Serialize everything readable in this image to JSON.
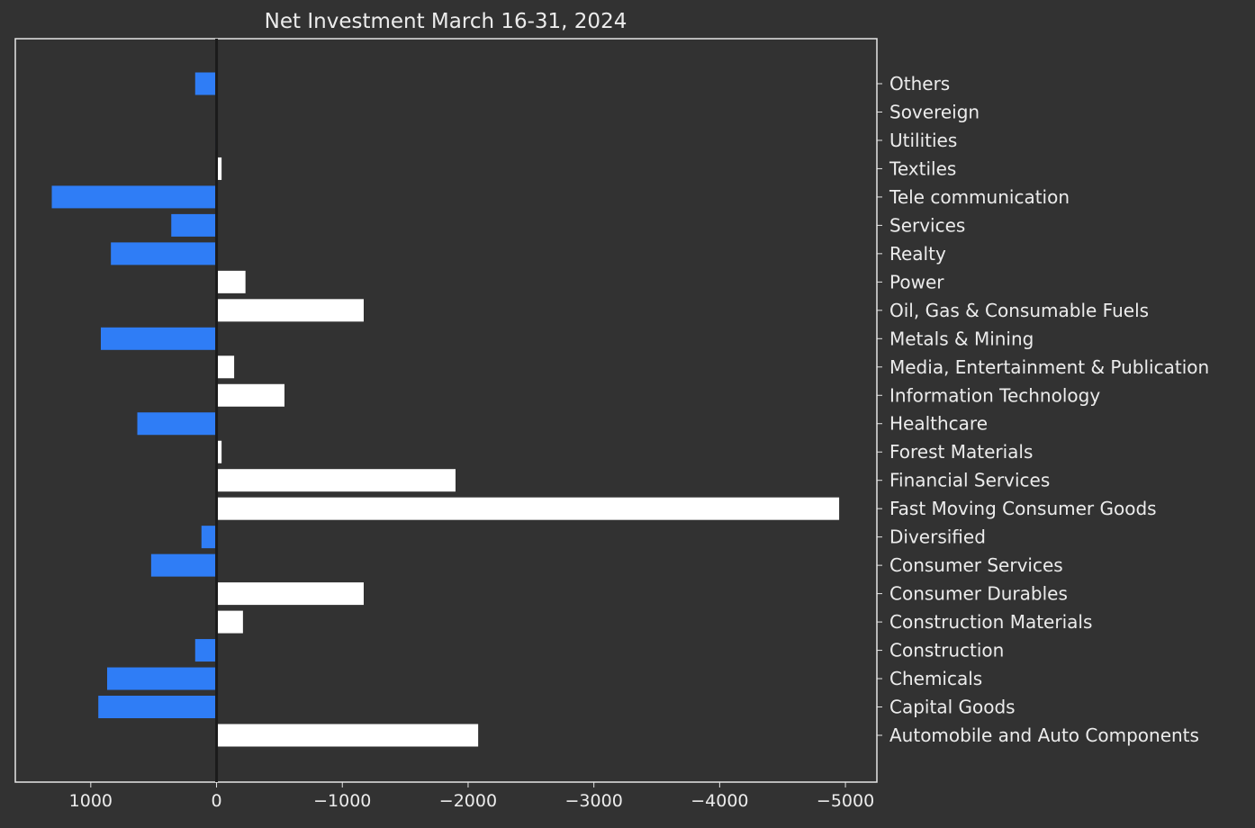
{
  "chart_data": {
    "type": "bar",
    "orientation": "horizontal",
    "title": "Net Investment March 16-31, 2024",
    "xlabel": "",
    "ylabel": "",
    "x_axis_inverted": true,
    "xlim": [
      1600,
      -5250
    ],
    "xticks": [
      1000,
      0,
      -1000,
      -2000,
      -3000,
      -4000,
      -5000
    ],
    "xtick_labels": [
      "1000",
      "0",
      "−1000",
      "−2000",
      "−3000",
      "−4000",
      "−5000"
    ],
    "ytick_position": "right",
    "grid": false,
    "colors": {
      "background": "#323232",
      "axes": "#e6e6e6",
      "positive_bar": "#2f7df6",
      "negative_bar": "#ffffff",
      "zero_line": "#1b1b1b"
    },
    "categories": [
      "Automobile and Auto Components",
      "Capital Goods",
      "Chemicals",
      "Construction",
      "Construction Materials",
      "Consumer Durables",
      "Consumer Services",
      "Diversified",
      "Fast Moving Consumer Goods",
      "Financial Services",
      "Forest Materials",
      "Healthcare",
      "Information Technology",
      "Media, Entertainment & Publication",
      "Metals & Mining",
      "Oil, Gas & Consumable Fuels",
      "Power",
      "Realty",
      "Services",
      "Tele communication",
      "Textiles",
      "Utilities",
      "Sovereign",
      "Others"
    ],
    "values": [
      -2080,
      940,
      870,
      170,
      -210,
      -1170,
      520,
      120,
      -4950,
      -1900,
      -40,
      630,
      -540,
      -140,
      920,
      -1170,
      -230,
      840,
      360,
      1310,
      -40,
      10,
      0,
      170
    ]
  }
}
